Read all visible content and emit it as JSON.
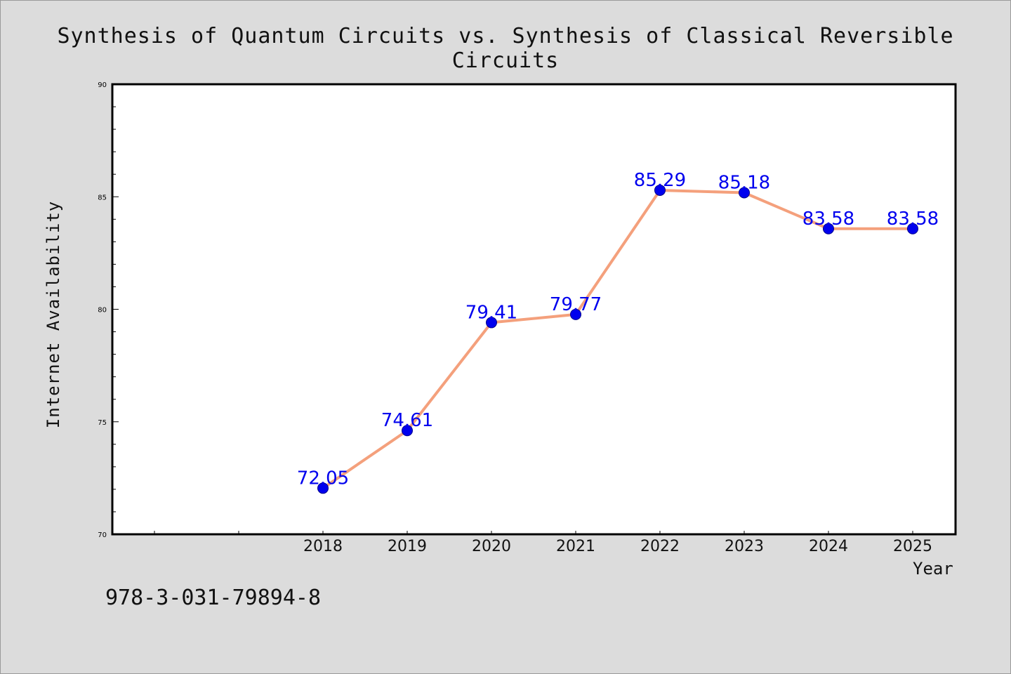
{
  "chart_data": {
    "type": "line",
    "title": "Synthesis of Quantum Circuits vs. Synthesis of Classical Reversible Circuits",
    "xlabel": "Year",
    "ylabel": "Internet Availability",
    "x": [
      "2018",
      "2019",
      "2020",
      "2021",
      "2022",
      "2023",
      "2024",
      "2025"
    ],
    "series": [
      {
        "values": [
          72.05,
          74.61,
          79.41,
          79.77,
          85.29,
          85.18,
          83.58,
          83.58
        ],
        "labels": [
          "72.05",
          "74.61",
          "79.41",
          "79.77",
          "85.29",
          "85.18",
          "83.58",
          "83.58"
        ]
      }
    ],
    "ylim": [
      70,
      90
    ],
    "yticks": [
      "70",
      "75",
      "80",
      "85",
      "90"
    ],
    "grid": false,
    "line_color": "#f4a07c",
    "marker_color": "#0000ee",
    "label_color": "#0000ee"
  },
  "footer_note": "978-3-031-79894-8"
}
